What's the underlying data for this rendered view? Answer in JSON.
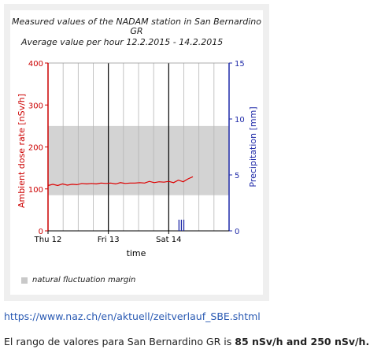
{
  "chart_data": {
    "type": "line",
    "title_lines": [
      "Measured values of the NADAM station in San Bernardino",
      "GR"
    ],
    "subtitle": "Average value per hour 12.2.2015 - 14.2.2015",
    "xlabel": "time",
    "x_ticks": [
      "Thu 12",
      "Fri 13",
      "Sat 14"
    ],
    "x_range_days": [
      0,
      3
    ],
    "y_left": {
      "label": "Ambient dose rate [nSv/h]",
      "range": [
        0,
        400
      ],
      "ticks": [
        "0",
        "100",
        "200",
        "300",
        "400"
      ],
      "color": "#cc0000"
    },
    "y_right": {
      "label": "Precipitation [mm]",
      "range": [
        0,
        15
      ],
      "ticks": [
        "0",
        "5",
        "10",
        "15"
      ],
      "color": "#1f2aa8"
    },
    "fluctuation_band": {
      "low": 85,
      "high": 250,
      "color": "#d3d3d3"
    },
    "series": [
      {
        "name": "",
        "axis": "left",
        "color": "#dd0000",
        "x": [
          0.0,
          0.08,
          0.16,
          0.24,
          0.32,
          0.4,
          0.48,
          0.56,
          0.64,
          0.72,
          0.8,
          0.88,
          0.96,
          1.04,
          1.12,
          1.2,
          1.28,
          1.36,
          1.44,
          1.52,
          1.6,
          1.68,
          1.76,
          1.84,
          1.92,
          2.0,
          2.08,
          2.16,
          2.24,
          2.32,
          2.4
        ],
        "y": [
          108,
          111,
          108,
          112,
          109,
          111,
          110,
          113,
          112,
          113,
          112,
          114,
          113,
          114,
          112,
          115,
          113,
          114,
          114,
          115,
          114,
          118,
          115,
          117,
          116,
          118,
          115,
          121,
          117,
          124,
          129
        ]
      },
      {
        "name": "",
        "axis": "right",
        "type": "bar",
        "color": "#1f2aa8",
        "x": [
          2.17,
          2.21,
          2.25
        ],
        "y": [
          1.0,
          1.0,
          1.0
        ]
      }
    ],
    "legend": {
      "label": "natural fluctuation margin",
      "position": "bottom-left"
    },
    "grid": true
  },
  "source_link": "https://www.naz.ch/en/aktuell/zeitverlauf_SBE.shtml",
  "caption": {
    "prefix": "El rango de valores  para San Bernardino GR is ",
    "highlight": "85 nSv/h and 250 nSv/h."
  }
}
